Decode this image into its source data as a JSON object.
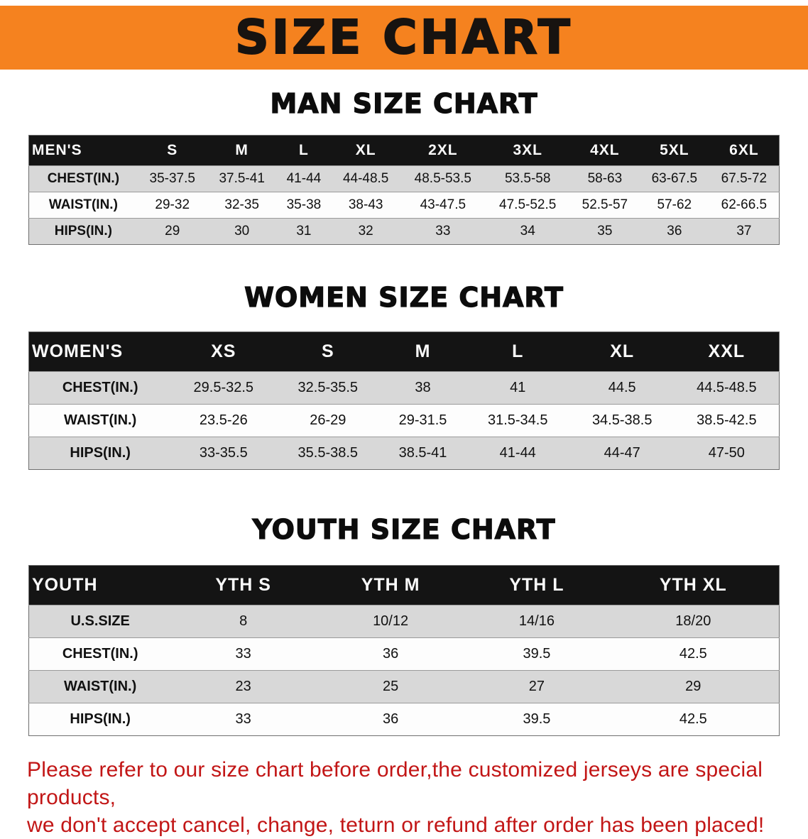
{
  "banner": {
    "title": "SIZE CHART",
    "bg_color": "#f5821f",
    "text_color": "#171310"
  },
  "chart_data": [
    {
      "type": "table",
      "title": "MAN SIZE CHART",
      "header_label": "MEN'S",
      "columns": [
        "S",
        "M",
        "L",
        "XL",
        "2XL",
        "3XL",
        "4XL",
        "5XL",
        "6XL"
      ],
      "rows": [
        {
          "label": "CHEST(IN.)",
          "values": [
            "35-37.5",
            "37.5-41",
            "41-44",
            "44-48.5",
            "48.5-53.5",
            "53.5-58",
            "58-63",
            "63-67.5",
            "67.5-72"
          ]
        },
        {
          "label": "WAIST(IN.)",
          "values": [
            "29-32",
            "32-35",
            "35-38",
            "38-43",
            "43-47.5",
            "47.5-52.5",
            "52.5-57",
            "57-62",
            "62-66.5"
          ]
        },
        {
          "label": "HIPS(IN.)",
          "values": [
            "29",
            "30",
            "31",
            "32",
            "33",
            "34",
            "35",
            "36",
            "37"
          ]
        }
      ]
    },
    {
      "type": "table",
      "title": "WOMEN SIZE CHART",
      "header_label": "WOMEN'S",
      "columns": [
        "XS",
        "S",
        "M",
        "L",
        "XL",
        "XXL"
      ],
      "rows": [
        {
          "label": "CHEST(IN.)",
          "values": [
            "29.5-32.5",
            "32.5-35.5",
            "38",
            "41",
            "44.5",
            "44.5-48.5"
          ]
        },
        {
          "label": "WAIST(IN.)",
          "values": [
            "23.5-26",
            "26-29",
            "29-31.5",
            "31.5-34.5",
            "34.5-38.5",
            "38.5-42.5"
          ]
        },
        {
          "label": "HIPS(IN.)",
          "values": [
            "33-35.5",
            "35.5-38.5",
            "38.5-41",
            "41-44",
            "44-47",
            "47-50"
          ]
        }
      ]
    },
    {
      "type": "table",
      "title": "YOUTH SIZE CHART",
      "header_label": "YOUTH",
      "columns": [
        "YTH S",
        "YTH M",
        "YTH L",
        "YTH XL"
      ],
      "rows": [
        {
          "label": "U.S.SIZE",
          "values": [
            "8",
            "10/12",
            "14/16",
            "18/20"
          ]
        },
        {
          "label": "CHEST(IN.)",
          "values": [
            "33",
            "36",
            "39.5",
            "42.5"
          ]
        },
        {
          "label": "WAIST(IN.)",
          "values": [
            "23",
            "25",
            "27",
            "29"
          ]
        },
        {
          "label": "HIPS(IN.)",
          "values": [
            "33",
            "36",
            "39.5",
            "42.5"
          ]
        }
      ]
    }
  ],
  "footer": {
    "line1": "Please refer to our size chart before order,the customized jerseys are special products,",
    "line2": "we don't accept cancel, change, teturn or refund after order has been placed!",
    "color": "#c21616"
  }
}
